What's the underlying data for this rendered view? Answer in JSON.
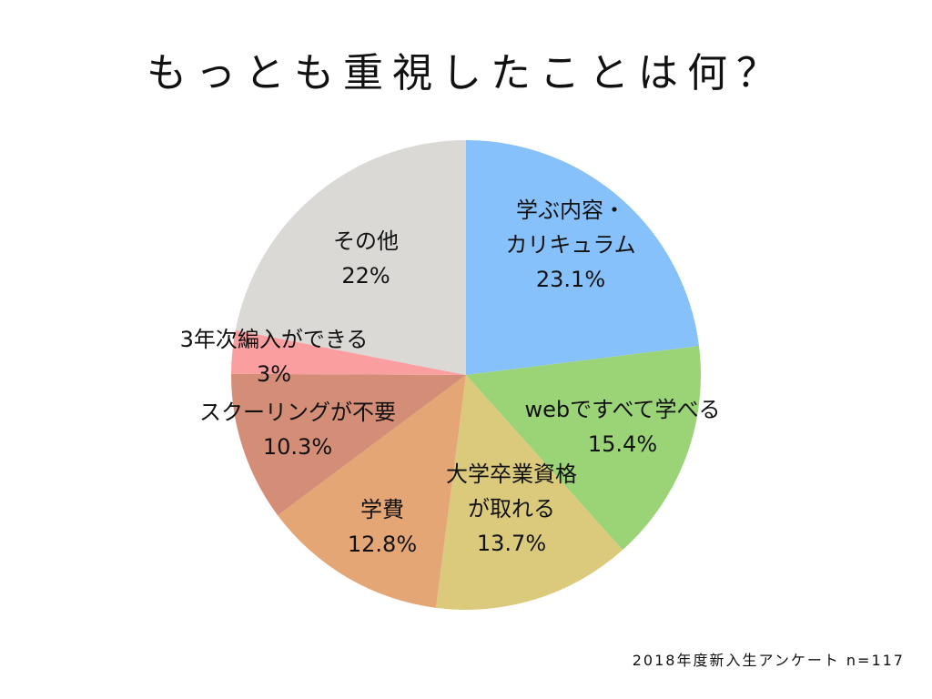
{
  "title": "もっとも重視したことは何？",
  "footnote": "2018年度新入生アンケート n=117",
  "chart_data": {
    "type": "pie",
    "title": "もっとも重視したことは何？",
    "start_angle_deg": 90,
    "direction": "clockwise",
    "slices": [
      {
        "label_lines": [
          "学ぶ内容・",
          "カリキュラム"
        ],
        "value": 23.1,
        "value_text": "23.1%",
        "color": "#86c1fb"
      },
      {
        "label_lines": [
          "webですべて学べる"
        ],
        "value": 15.4,
        "value_text": "15.4%",
        "color": "#9bd377"
      },
      {
        "label_lines": [
          "大学卒業資格",
          "が取れる"
        ],
        "value": 13.7,
        "value_text": "13.7%",
        "color": "#dcca7c"
      },
      {
        "label_lines": [
          "学費"
        ],
        "value": 12.8,
        "value_text": "12.8%",
        "color": "#e4a674"
      },
      {
        "label_lines": [
          "スクーリングが不要"
        ],
        "value": 10.3,
        "value_text": "10.3%",
        "color": "#d48e78"
      },
      {
        "label_lines": [
          "3年次編入ができる"
        ],
        "value": 3,
        "value_text": "3%",
        "color": "#fa9ea0"
      },
      {
        "label_lines": [
          "その他"
        ],
        "value": 22,
        "value_text": "22%",
        "color": "#dad9d6"
      }
    ]
  }
}
